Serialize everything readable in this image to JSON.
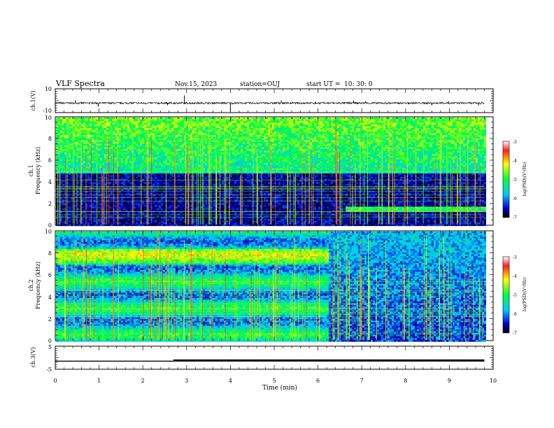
{
  "header": {
    "title": "VLF Spectra",
    "date": "Nov.15, 2023",
    "station": "station=OUJ",
    "start_label": "start  UT  =",
    "start_time": "10: 30: 0"
  },
  "colorbar": {
    "ticks": [
      "-3",
      "-4",
      "-5",
      "-6",
      "-7"
    ],
    "label": "log(PSD)(V²/Hz)"
  },
  "chart_data": [
    {
      "type": "line",
      "name": "ch1-waveform",
      "ylabel": "ch.1(V)",
      "ylim": [
        -10,
        10
      ],
      "yticks": [
        "10",
        "-10"
      ],
      "baseline": -2,
      "xlim": [
        0,
        10
      ]
    },
    {
      "type": "heatmap",
      "name": "ch1-spectrogram",
      "ylabel_channel": "ch.1",
      "ylabel": "Frequency  (kHz)",
      "ylim": [
        0,
        10
      ],
      "yticks": [
        "0",
        "2",
        "4",
        "6",
        "8",
        "10"
      ],
      "xlim": [
        0,
        9.8
      ],
      "clim": [
        -7,
        -3
      ],
      "features": {
        "noise_band_khz": [
          4.8,
          10
        ],
        "quiet_band_khz": [
          0,
          4.8
        ],
        "emission_start_min": 6.6,
        "emission_freq_khz": 1.5
      }
    },
    {
      "type": "heatmap",
      "name": "ch2-spectrogram",
      "ylabel_channel": "ch.2",
      "ylabel": "Frequency  (kHz)",
      "ylim": [
        0,
        10
      ],
      "yticks": [
        "0",
        "2",
        "4",
        "6",
        "8",
        "10"
      ],
      "xlim": [
        0,
        9.8
      ],
      "clim": [
        -7,
        -3
      ],
      "features": {
        "level_change_min": 6.2
      }
    },
    {
      "type": "line",
      "name": "ch3-level",
      "ylabel": "ch.3(V)",
      "ylim": [
        -5,
        5
      ],
      "yticks": [
        "5",
        "-5"
      ],
      "segments": [
        {
          "x": [
            0,
            2.7
          ],
          "y": [
            -1.5,
            -1.5
          ]
        },
        {
          "x": [
            2.7,
            9.8
          ],
          "y": [
            -1.2,
            -1.2
          ]
        }
      ],
      "xlabel": "Time  (min)",
      "xlim": [
        0,
        10
      ],
      "xticks": [
        "0",
        "1",
        "2",
        "3",
        "4",
        "5",
        "6",
        "7",
        "8",
        "9",
        "10"
      ]
    }
  ]
}
